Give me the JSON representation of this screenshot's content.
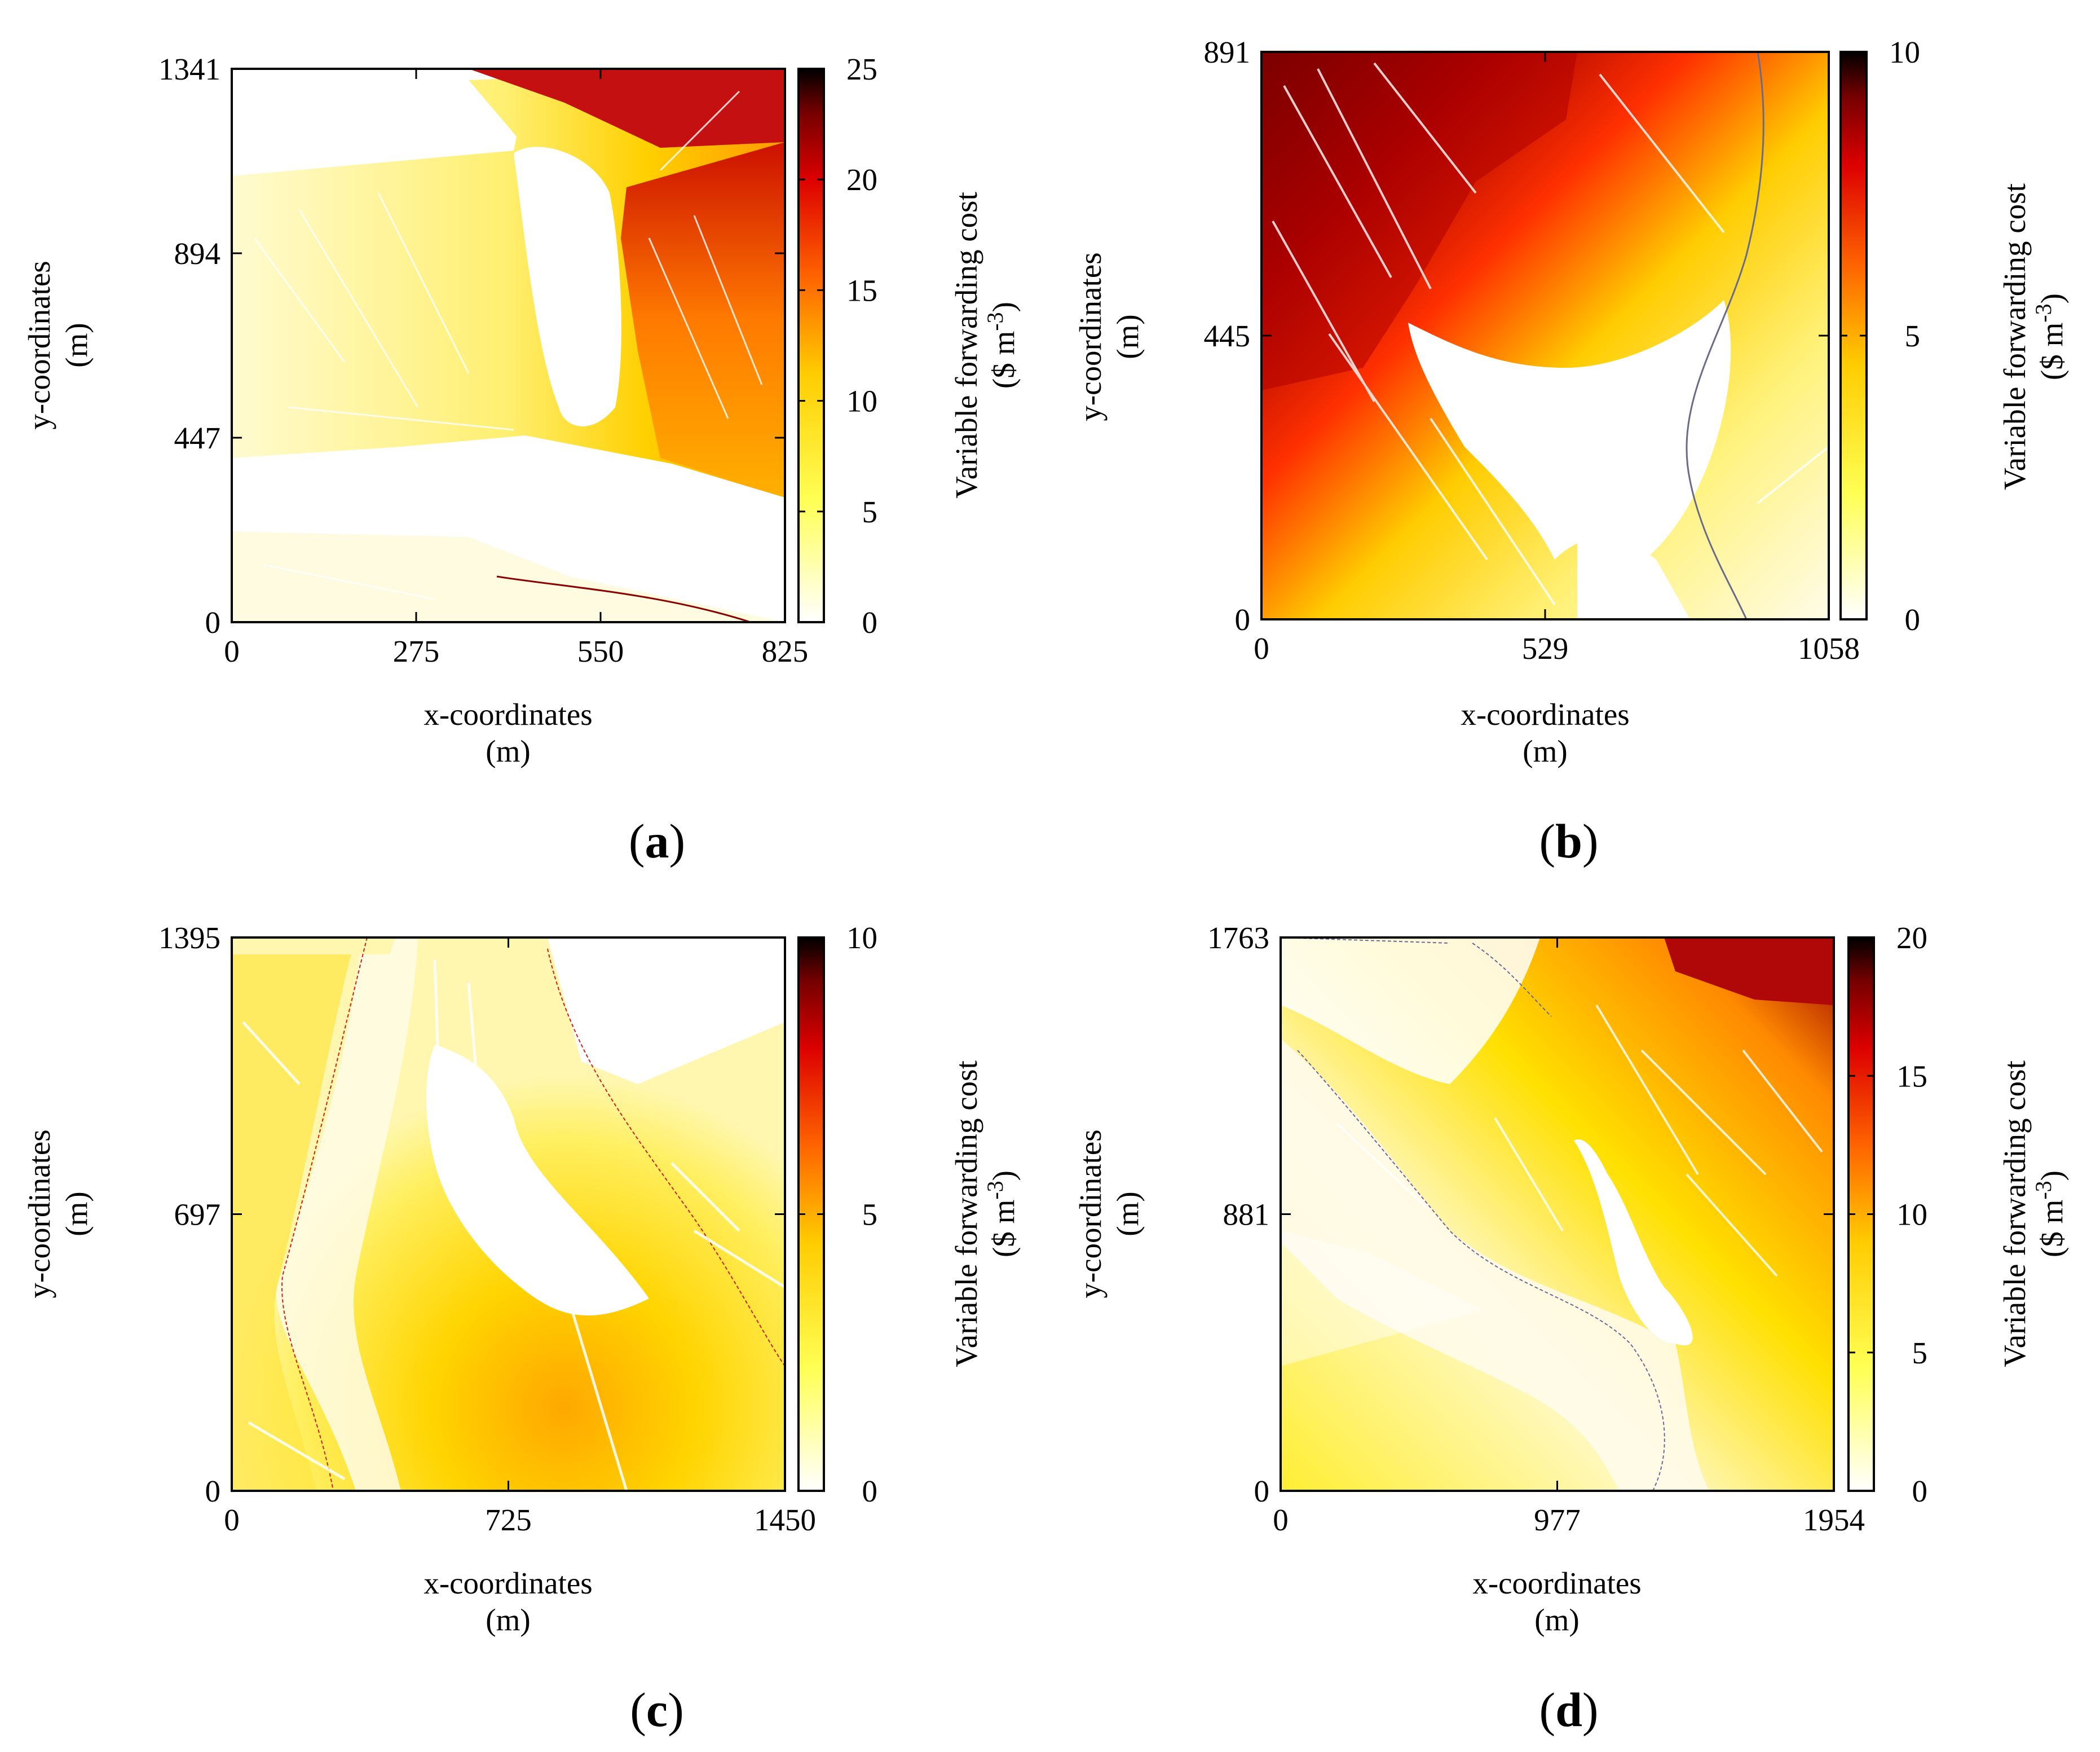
{
  "colors": {
    "colorbar_stops": [
      "#ffffff",
      "#ffff33",
      "#ffaa00",
      "#ff1a00",
      "#990000",
      "#000000"
    ],
    "frame": "#000000"
  },
  "chart_data": [
    {
      "id": "a",
      "type": "heatmap",
      "caption_letter": "a",
      "title": "",
      "xlabel_line1": "x-coordinates",
      "xlabel_line2": "(m)",
      "ylabel_line1": "y-coordinates",
      "ylabel_line2": "(m)",
      "colorbar_label_line1": "Variable forwarding cost",
      "colorbar_label_line2": "($ m-3)",
      "colorbar_unit_prefix": "($ m",
      "colorbar_unit_exp": "-3",
      "colorbar_unit_suffix": ")",
      "xlim": [
        0,
        825
      ],
      "ylim": [
        0,
        1341
      ],
      "clim": [
        0,
        25
      ],
      "xticks": [
        "0",
        "275",
        "550",
        "825"
      ],
      "yticks": [
        "0",
        "447",
        "894",
        "1341"
      ],
      "cticks": [
        "0",
        "5",
        "10",
        "15",
        "20",
        "25"
      ]
    },
    {
      "id": "b",
      "type": "heatmap",
      "caption_letter": "b",
      "title": "",
      "xlabel_line1": "x-coordinates",
      "xlabel_line2": "(m)",
      "ylabel_line1": "y-coordinates",
      "ylabel_line2": "(m)",
      "colorbar_label_line1": "Variable forwarding cost",
      "colorbar_label_line2": "($ m-3)",
      "colorbar_unit_prefix": "($ m",
      "colorbar_unit_exp": "-3",
      "colorbar_unit_suffix": ")",
      "xlim": [
        0,
        1058
      ],
      "ylim": [
        0,
        891
      ],
      "clim": [
        0,
        10
      ],
      "xticks": [
        "0",
        "529",
        "1058"
      ],
      "yticks": [
        "0",
        "445",
        "891"
      ],
      "cticks": [
        "0",
        "5",
        "10"
      ]
    },
    {
      "id": "c",
      "type": "heatmap",
      "caption_letter": "c",
      "title": "",
      "xlabel_line1": "x-coordinates",
      "xlabel_line2": "(m)",
      "ylabel_line1": "y-coordinates",
      "ylabel_line2": "(m)",
      "colorbar_label_line1": "Variable forwarding cost",
      "colorbar_label_line2": "($ m-3)",
      "colorbar_unit_prefix": "($ m",
      "colorbar_unit_exp": "-3",
      "colorbar_unit_suffix": ")",
      "xlim": [
        0,
        1450
      ],
      "ylim": [
        0,
        1395
      ],
      "clim": [
        0,
        10
      ],
      "xticks": [
        "0",
        "725",
        "1450"
      ],
      "yticks": [
        "0",
        "697",
        "1395"
      ],
      "cticks": [
        "0",
        "5",
        "10"
      ]
    },
    {
      "id": "d",
      "type": "heatmap",
      "caption_letter": "d",
      "title": "",
      "xlabel_line1": "x-coordinates",
      "xlabel_line2": "(m)",
      "ylabel_line1": "y-coordinates",
      "ylabel_line2": "(m)",
      "colorbar_label_line1": "Variable forwarding cost",
      "colorbar_label_line2": "($ m-3)",
      "colorbar_unit_prefix": "($ m",
      "colorbar_unit_exp": "-3",
      "colorbar_unit_suffix": ")",
      "xlim": [
        0,
        1954
      ],
      "ylim": [
        0,
        1763
      ],
      "clim": [
        0,
        20
      ],
      "xticks": [
        "0",
        "977",
        "1954"
      ],
      "yticks": [
        "0",
        "881",
        "1763"
      ],
      "cticks": [
        "0",
        "5",
        "10",
        "15",
        "20"
      ]
    }
  ]
}
